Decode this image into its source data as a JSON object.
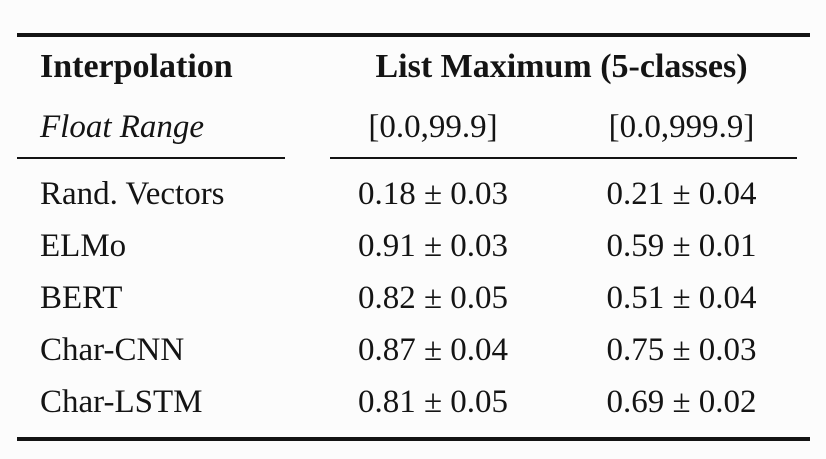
{
  "table": {
    "header": {
      "col1_title": "Interpolation",
      "col1_subtitle": "Float Range",
      "group_title": "List Maximum (5-classes)",
      "range_1": "[0.0,99.9]",
      "range_2": "[0.0,999.9]"
    },
    "rows": [
      {
        "label": "Rand. Vectors",
        "v1": "0.18 ± 0.03",
        "v2": "0.21 ± 0.04"
      },
      {
        "label": "ELMo",
        "v1": "0.91 ± 0.03",
        "v2": "0.59 ± 0.01"
      },
      {
        "label": "BERT",
        "v1": "0.82 ± 0.05",
        "v2": "0.51 ± 0.04"
      },
      {
        "label": "Char-CNN",
        "v1": "0.87 ± 0.04",
        "v2": "0.75 ± 0.03"
      },
      {
        "label": "Char-LSTM",
        "v1": "0.81 ± 0.05",
        "v2": "0.69 ± 0.02"
      }
    ],
    "colors": {
      "text": "#141414",
      "rule": "#141414",
      "background": "#fcfcfc"
    }
  },
  "chart_data": {
    "type": "table",
    "title": "List Maximum (5-classes)",
    "row_header": "Interpolation",
    "row_subheader": "Float Range",
    "columns": [
      "[0.0,99.9]",
      "[0.0,999.9]"
    ],
    "categories": [
      "Rand. Vectors",
      "ELMo",
      "BERT",
      "Char-CNN",
      "Char-LSTM"
    ],
    "series": [
      {
        "name": "[0.0,99.9]",
        "values": [
          0.18,
          0.91,
          0.82,
          0.87,
          0.81
        ],
        "errors": [
          0.03,
          0.03,
          0.05,
          0.04,
          0.05
        ]
      },
      {
        "name": "[0.0,999.9]",
        "values": [
          0.21,
          0.59,
          0.51,
          0.75,
          0.69
        ],
        "errors": [
          0.04,
          0.01,
          0.04,
          0.03,
          0.02
        ]
      }
    ]
  }
}
